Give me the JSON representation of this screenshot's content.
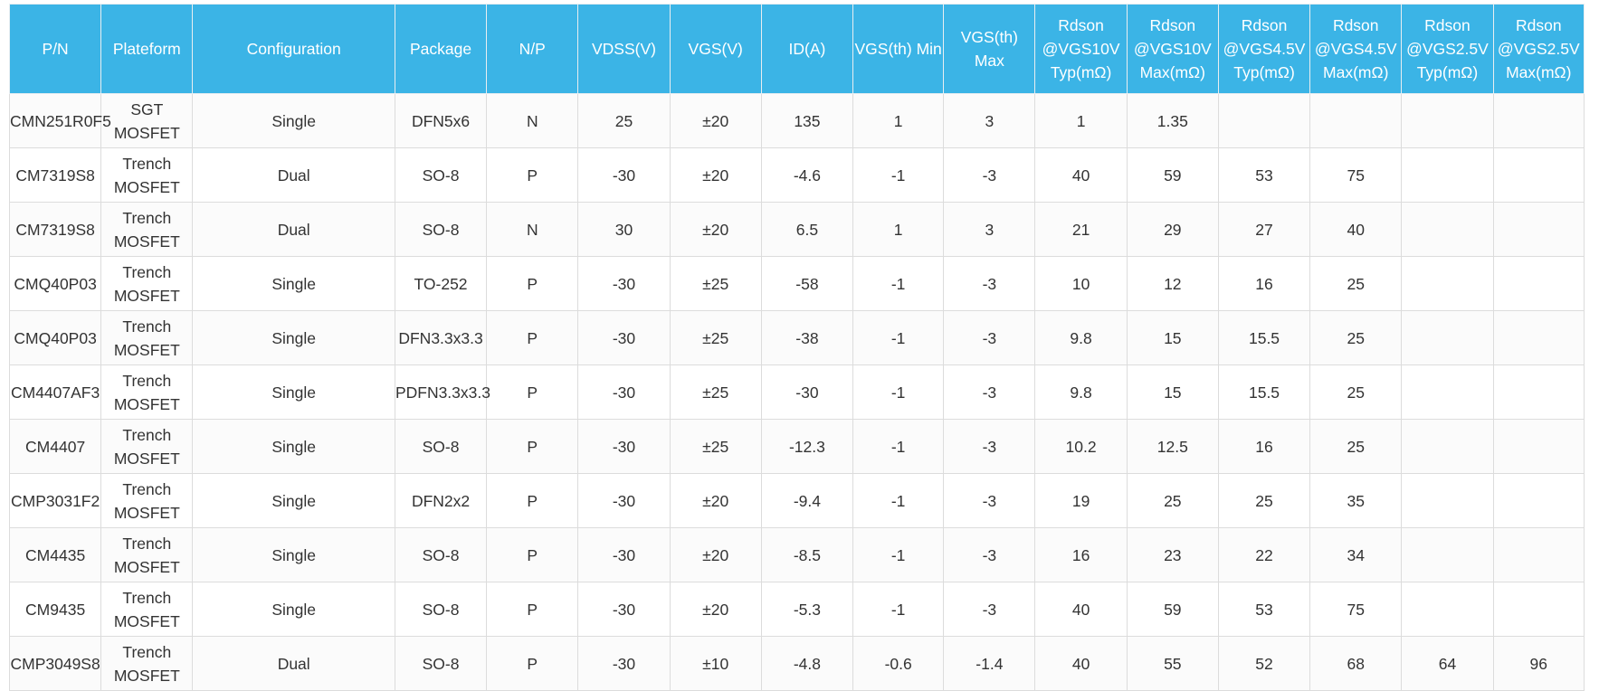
{
  "table": {
    "headers": [
      [
        "P/N"
      ],
      [
        "Plateform"
      ],
      [
        "Configuration"
      ],
      [
        "Package"
      ],
      [
        "N/P"
      ],
      [
        "VDSS(V)"
      ],
      [
        "VGS(V)"
      ],
      [
        "ID(A)"
      ],
      [
        "VGS(th) Min"
      ],
      [
        "VGS(th)",
        "Max"
      ],
      [
        "Rdson",
        "@VGS10V",
        "Typ(mΩ)"
      ],
      [
        "Rdson",
        "@VGS10V",
        "Max(mΩ)"
      ],
      [
        "Rdson",
        "@VGS4.5V",
        "Typ(mΩ)"
      ],
      [
        "Rdson",
        "@VGS4.5V",
        "Max(mΩ)"
      ],
      [
        "Rdson",
        "@VGS2.5V",
        "Typ(mΩ)"
      ],
      [
        "Rdson",
        "@VGS2.5V",
        "Max(mΩ)"
      ]
    ],
    "rows": [
      [
        [
          "CMN251R0F5"
        ],
        [
          "SGT",
          "MOSFET"
        ],
        [
          "Single"
        ],
        [
          "DFN5x6"
        ],
        [
          "N"
        ],
        [
          "25"
        ],
        [
          "±20"
        ],
        [
          "135"
        ],
        [
          "1"
        ],
        [
          "3"
        ],
        [
          "1"
        ],
        [
          "1.35"
        ],
        [
          ""
        ],
        [
          ""
        ],
        [
          ""
        ],
        [
          ""
        ]
      ],
      [
        [
          "CM7319S8"
        ],
        [
          "Trench",
          "MOSFET"
        ],
        [
          "Dual"
        ],
        [
          "SO-8"
        ],
        [
          "P"
        ],
        [
          "-30"
        ],
        [
          "±20"
        ],
        [
          "-4.6"
        ],
        [
          "-1"
        ],
        [
          "-3"
        ],
        [
          "40"
        ],
        [
          "59"
        ],
        [
          "53"
        ],
        [
          "75"
        ],
        [
          ""
        ],
        [
          ""
        ]
      ],
      [
        [
          "CM7319S8"
        ],
        [
          "Trench",
          "MOSFET"
        ],
        [
          "Dual"
        ],
        [
          "SO-8"
        ],
        [
          "N"
        ],
        [
          "30"
        ],
        [
          "±20"
        ],
        [
          "6.5"
        ],
        [
          "1"
        ],
        [
          "3"
        ],
        [
          "21"
        ],
        [
          "29"
        ],
        [
          "27"
        ],
        [
          "40"
        ],
        [
          ""
        ],
        [
          ""
        ]
      ],
      [
        [
          "CMQ40P03"
        ],
        [
          "Trench",
          "MOSFET"
        ],
        [
          "Single"
        ],
        [
          "TO-252"
        ],
        [
          "P"
        ],
        [
          "-30"
        ],
        [
          "±25"
        ],
        [
          "-58"
        ],
        [
          "-1"
        ],
        [
          "-3"
        ],
        [
          "10"
        ],
        [
          "12"
        ],
        [
          "16"
        ],
        [
          "25"
        ],
        [
          ""
        ],
        [
          ""
        ]
      ],
      [
        [
          "CMQ40P03"
        ],
        [
          "Trench",
          "MOSFET"
        ],
        [
          "Single"
        ],
        [
          "DFN3.3x3.3"
        ],
        [
          "P"
        ],
        [
          "-30"
        ],
        [
          "±25"
        ],
        [
          "-38"
        ],
        [
          "-1"
        ],
        [
          "-3"
        ],
        [
          "9.8"
        ],
        [
          "15"
        ],
        [
          "15.5"
        ],
        [
          "25"
        ],
        [
          ""
        ],
        [
          ""
        ]
      ],
      [
        [
          "CM4407AF3"
        ],
        [
          "Trench",
          "MOSFET"
        ],
        [
          "Single"
        ],
        [
          "PDFN3.3x3.3"
        ],
        [
          "P"
        ],
        [
          "-30"
        ],
        [
          "±25"
        ],
        [
          "-30"
        ],
        [
          "-1"
        ],
        [
          "-3"
        ],
        [
          "9.8"
        ],
        [
          "15"
        ],
        [
          "15.5"
        ],
        [
          "25"
        ],
        [
          ""
        ],
        [
          ""
        ]
      ],
      [
        [
          "CM4407"
        ],
        [
          "Trench",
          "MOSFET"
        ],
        [
          "Single"
        ],
        [
          "SO-8"
        ],
        [
          "P"
        ],
        [
          "-30"
        ],
        [
          "±25"
        ],
        [
          "-12.3"
        ],
        [
          "-1"
        ],
        [
          "-3"
        ],
        [
          "10.2"
        ],
        [
          "12.5"
        ],
        [
          "16"
        ],
        [
          "25"
        ],
        [
          ""
        ],
        [
          ""
        ]
      ],
      [
        [
          "CMP3031F2"
        ],
        [
          "Trench",
          "MOSFET"
        ],
        [
          "Single"
        ],
        [
          "DFN2x2"
        ],
        [
          "P"
        ],
        [
          "-30"
        ],
        [
          "±20"
        ],
        [
          "-9.4"
        ],
        [
          "-1"
        ],
        [
          "-3"
        ],
        [
          "19"
        ],
        [
          "25"
        ],
        [
          "25"
        ],
        [
          "35"
        ],
        [
          ""
        ],
        [
          ""
        ]
      ],
      [
        [
          "CM4435"
        ],
        [
          "Trench",
          "MOSFET"
        ],
        [
          "Single"
        ],
        [
          "SO-8"
        ],
        [
          "P"
        ],
        [
          "-30"
        ],
        [
          "±20"
        ],
        [
          "-8.5"
        ],
        [
          "-1"
        ],
        [
          "-3"
        ],
        [
          "16"
        ],
        [
          "23"
        ],
        [
          "22"
        ],
        [
          "34"
        ],
        [
          ""
        ],
        [
          ""
        ]
      ],
      [
        [
          "CM9435"
        ],
        [
          "Trench",
          "MOSFET"
        ],
        [
          "Single"
        ],
        [
          "SO-8"
        ],
        [
          "P"
        ],
        [
          "-30"
        ],
        [
          "±20"
        ],
        [
          "-5.3"
        ],
        [
          "-1"
        ],
        [
          "-3"
        ],
        [
          "40"
        ],
        [
          "59"
        ],
        [
          "53"
        ],
        [
          "75"
        ],
        [
          ""
        ],
        [
          ""
        ]
      ],
      [
        [
          "CMP3049S8"
        ],
        [
          "Trench",
          "MOSFET"
        ],
        [
          "Dual"
        ],
        [
          "SO-8"
        ],
        [
          "P"
        ],
        [
          "-30"
        ],
        [
          "±10"
        ],
        [
          "-4.8"
        ],
        [
          "-0.6"
        ],
        [
          "-1.4"
        ],
        [
          "40"
        ],
        [
          "55"
        ],
        [
          "52"
        ],
        [
          "68"
        ],
        [
          "64"
        ],
        [
          "96"
        ]
      ]
    ]
  },
  "colors": {
    "header_bg": "#3bb4e6",
    "header_text": "#ffffff",
    "cell_text": "#333333",
    "grid": "#dcdcdc"
  }
}
